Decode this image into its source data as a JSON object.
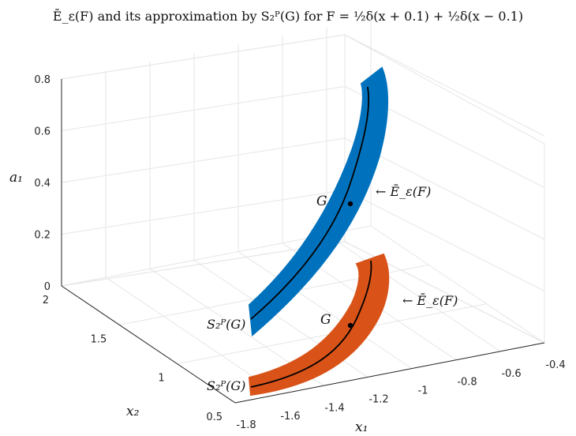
{
  "chart_data": {
    "type": "3d-surface-with-curves",
    "title": "Ē_ε(F) and its approximation by S₂ᴾ(G) for F = ½δ(x + 0.1) + ½δ(x − 0.1)",
    "xlabel": "x₁",
    "ylabel": "x₂",
    "zlabel": "a₁",
    "xlim": [
      -1.8,
      -0.4
    ],
    "ylim": [
      0.5,
      2
    ],
    "zlim": [
      0,
      0.8
    ],
    "x_ticks": [
      "-1.8",
      "-1.6",
      "-1.4",
      "-1.2",
      "-1",
      "-0.8",
      "-0.6",
      "-0.4"
    ],
    "y_ticks": [
      "0.5",
      "1",
      "1.5",
      "2"
    ],
    "z_ticks": [
      "0",
      "0.2",
      "0.4",
      "0.6",
      "0.8"
    ],
    "grid": true,
    "colors": {
      "band_blue": "#0072BD",
      "band_orange": "#D95319",
      "curve": "#000000"
    },
    "series": [
      {
        "label_band": "← Ē_ε(F)",
        "label_point": "G",
        "label_start": "S₂ᴾ(G)",
        "color": "#0072BD"
      },
      {
        "label_band": "← Ē_ε(F)",
        "label_point": "G",
        "label_start": "S₂ᴾ(G)",
        "color": "#D95319"
      }
    ]
  }
}
